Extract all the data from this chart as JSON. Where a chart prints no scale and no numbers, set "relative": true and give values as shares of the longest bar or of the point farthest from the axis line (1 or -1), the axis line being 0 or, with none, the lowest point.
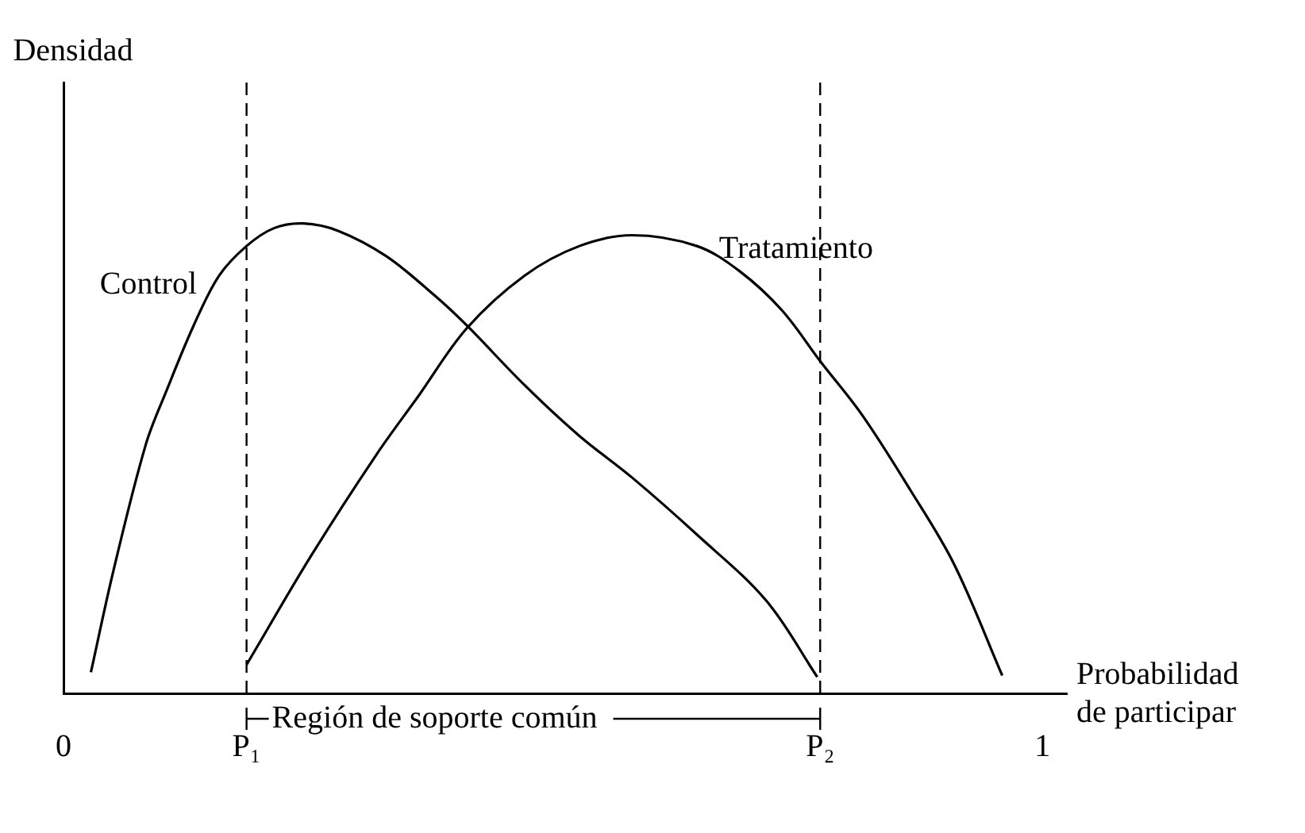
{
  "chart_data": {
    "type": "line",
    "ylabel": "Densidad",
    "xlabel": "Probabilidad de participar",
    "relative": true,
    "xlim": [
      0,
      1.025
    ],
    "xticks": [
      0,
      {
        "value": 0.187,
        "label": "P₁"
      },
      {
        "value": 0.773,
        "label": "P₂"
      },
      1
    ],
    "legend": false,
    "grid": false,
    "marker": "none",
    "line_style": "solid",
    "series": [
      {
        "name": "Control",
        "color": "#000000",
        "x": [
          0.028,
          0.051,
          0.084,
          0.105,
          0.133,
          0.159,
          0.187,
          0.215,
          0.245,
          0.281,
          0.33,
          0.379,
          0.412,
          0.471,
          0.527,
          0.581,
          0.647,
          0.718,
          0.77
        ],
        "values": [
          0.045,
          0.261,
          0.529,
          0.643,
          0.783,
          0.889,
          0.952,
          0.99,
          1,
          0.984,
          0.93,
          0.847,
          0.783,
          0.656,
          0.548,
          0.459,
          0.338,
          0.197,
          0.035
        ]
      },
      {
        "name": "Tratamiento",
        "color": "#000000",
        "x": [
          0.187,
          0.253,
          0.319,
          0.363,
          0.412,
          0.471,
          0.527,
          0.581,
          0.647,
          0.691,
          0.734,
          0.773,
          0.816,
          0.865,
          0.91,
          0.959
        ],
        "values": [
          0.061,
          0.293,
          0.506,
          0.634,
          0.777,
          0.889,
          0.952,
          0.975,
          0.952,
          0.898,
          0.815,
          0.707,
          0.592,
          0.433,
          0.274,
          0.038
        ]
      }
    ],
    "ref_lines": [
      {
        "axis": "x",
        "value": 0.187,
        "line_style": "dashed",
        "color": "#000000"
      },
      {
        "axis": "x",
        "value": 0.773,
        "line_style": "dashed",
        "color": "#000000"
      }
    ],
    "annotations": [
      "Región de soporte común"
    ]
  }
}
